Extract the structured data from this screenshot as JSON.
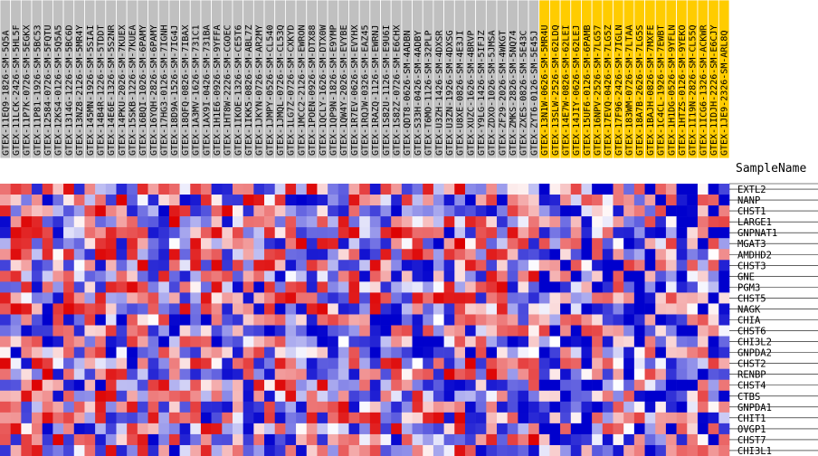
{
  "chart_data": {
    "type": "heatmap",
    "title": "",
    "xlabel": "",
    "ylabel": "SampleName",
    "colors": {
      "group_a_header": "#c0c0c0",
      "group_b_header": "#ffcc00",
      "low": "#0000cc",
      "mid": "#ffffff",
      "high": "#dd0000"
    },
    "value_range": [
      -2,
      2
    ],
    "columns": [
      {
        "name": "GTEX-11EQ9-1826-SM-5Q5A",
        "group": "a"
      },
      {
        "name": "GTEX-11LCK-2426-SM-5HL5F",
        "group": "a"
      },
      {
        "name": "GTEX-11P7K-0726-SM-5EGKX",
        "group": "a"
      },
      {
        "name": "GTEX-11P81-1926-SM-5BC53",
        "group": "a"
      },
      {
        "name": "GTEX-12584-0726-SM-5FQTU",
        "group": "a"
      },
      {
        "name": "GTEX-12KS4-0126-SM-5Q5A5",
        "group": "a"
      },
      {
        "name": "GTEX-1314G-1226-SM-5BC6D",
        "group": "a"
      },
      {
        "name": "GTEX-13NZ8-2126-SM-5MR4Y",
        "group": "a"
      },
      {
        "name": "GTEX-145MN-1926-SM-5SIAI",
        "group": "a"
      },
      {
        "name": "GTEX-14B4R-1226-SM-5TDDT",
        "group": "a"
      },
      {
        "name": "GTEX-14E6E-1326-SM-5S2NR",
        "group": "a"
      },
      {
        "name": "GTEX-14PKU-2026-SM-7KUEX",
        "group": "a"
      },
      {
        "name": "GTEX-15SKB-1226-SM-7KUEA",
        "group": "a"
      },
      {
        "name": "GTEX-16BQI-1026-SM-6PAMY",
        "group": "a"
      },
      {
        "name": "GTEX-16YQH-2826-SM-6PAMY",
        "group": "a"
      },
      {
        "name": "GTEX-17HG3-0126-SM-7IGNH",
        "group": "a"
      },
      {
        "name": "GTEX-18D9A-1526-SM-7IG4J",
        "group": "a"
      },
      {
        "name": "GTEX-18QFQ-0826-SM-7IBAX",
        "group": "a"
      },
      {
        "name": "GTEX-1A3MV-1626-SM-731C1",
        "group": "a"
      },
      {
        "name": "GTEX-1AX9I-0426-SM-731BA",
        "group": "a"
      },
      {
        "name": "GTEX-1H1E6-0926-SM-9YFFA",
        "group": "a"
      },
      {
        "name": "GTEX-1HT8W-2226-SM-CGOEC",
        "group": "a"
      },
      {
        "name": "GTEX-1IKOE-1326-SM-CE5T6",
        "group": "a"
      },
      {
        "name": "GTEX-1IKK5-0826-SM-ABL7Z",
        "group": "a"
      },
      {
        "name": "GTEX-1JKYN-0726-SM-AR2MY",
        "group": "a"
      },
      {
        "name": "GTEX-1JMPY-0526-SM-CL540",
        "group": "a"
      },
      {
        "name": "GTEX-1JMQL-0726-SM-CL53Q",
        "group": "a"
      },
      {
        "name": "GTEX-1LG7Z-0726-SM-CXKYD",
        "group": "a"
      },
      {
        "name": "GTEX-1MCC2-2126-SM-EWRON",
        "group": "a"
      },
      {
        "name": "GTEX-1POEN-0926-SM-DTX88",
        "group": "a"
      },
      {
        "name": "GTEX-1QCLY-1626-SM-DTX0W",
        "group": "a"
      },
      {
        "name": "GTEX-1QP9N-1826-SM-E9YMP",
        "group": "a"
      },
      {
        "name": "GTEX-1QW4Y-2026-SM-EVYBE",
        "group": "a"
      },
      {
        "name": "GTEX-1R7EV-0626-SM-EVYHX",
        "group": "a"
      },
      {
        "name": "GTEX-1RQJW-0326-SM-EAZ45",
        "group": "a"
      },
      {
        "name": "GTEX-1RAZQ-1126-SM-EWRNJ",
        "group": "a"
      },
      {
        "name": "GTEX-1S82U-1126-SM-E9U6I",
        "group": "a"
      },
      {
        "name": "GTEX-1S82Z-0726-SM-E6CHX",
        "group": "a"
      },
      {
        "name": "GTEX-QDT8-0626-SM-4ADBN",
        "group": "a"
      },
      {
        "name": "GTEX-S33H-0426-SM-4ADBY",
        "group": "a"
      },
      {
        "name": "GTEX-T6MO-1126-SM-32PLP",
        "group": "a"
      },
      {
        "name": "GTEX-U3ZH-1426-SM-4DXSR",
        "group": "a"
      },
      {
        "name": "GTEX-U3ZN-1926-SM-4DXSG",
        "group": "a"
      },
      {
        "name": "GTEX-U8XE-0826-SM-4E3JI",
        "group": "a"
      },
      {
        "name": "GTEX-XUZC-1626-SM-4BRVP",
        "group": "a"
      },
      {
        "name": "GTEX-Y9LG-1426-SM-5IFJZ",
        "group": "a"
      },
      {
        "name": "GTEX-ZDXO-1026-SM-5JMSA",
        "group": "a"
      },
      {
        "name": "GTEX-ZF29-2026-SM-4WKGT",
        "group": "a"
      },
      {
        "name": "GTEX-ZMKS-2826-SM-5NQ74",
        "group": "a"
      },
      {
        "name": "GTEX-ZXES-0826-SM-5E43C",
        "group": "a"
      },
      {
        "name": "GTEX-ZYT6-0126-SM-5E45J",
        "group": "a"
      },
      {
        "name": "GTEX-13N1W-0626-SM-5MR4U",
        "group": "b"
      },
      {
        "name": "GTEX-13SLW-2526-SM-62LDQ",
        "group": "b"
      },
      {
        "name": "GTEX-14E7W-0826-SM-62LEI",
        "group": "b"
      },
      {
        "name": "GTEX-14JIY-0626-SM-62LEJ",
        "group": "b"
      },
      {
        "name": "GTEX-15UF6-0126-SM-6PAMB",
        "group": "b"
      },
      {
        "name": "GTEX-16NPV-2526-SM-7LG57",
        "group": "b"
      },
      {
        "name": "GTEX-17EVQ-0426-SM-7LG5Z",
        "group": "b"
      },
      {
        "name": "GTEX-17F96-2426-SM-7IGLN",
        "group": "b"
      },
      {
        "name": "GTEX-183WM-0726-SM-7LTAA",
        "group": "b"
      },
      {
        "name": "GTEX-18A7B-2626-SM-7LG5S",
        "group": "b"
      },
      {
        "name": "GTEX-1BAJH-0826-SM-7MXFE",
        "group": "b"
      },
      {
        "name": "GTEX-1C4CL-1926-SM-7EWBT",
        "group": "b"
      },
      {
        "name": "GTEX-1H1DG-0526-SM-9YFLN",
        "group": "b"
      },
      {
        "name": "GTEX-1HTZS-0126-SM-9YEKO",
        "group": "b"
      },
      {
        "name": "GTEX-1I19N-2826-SM-CL55Q",
        "group": "b"
      },
      {
        "name": "GTEX-1ICG6-1326-SM-ACKWR",
        "group": "b"
      },
      {
        "name": "GTEX-1IDJH-2226-SM-E6CJY",
        "group": "b"
      },
      {
        "name": "GTEX-1JE9-2326-SM-ARL8Q",
        "group": "b"
      }
    ],
    "rows": [
      "EXTL2",
      "NANP",
      "CHST1",
      "LARGE1",
      "GNPNAT1",
      "MGAT3",
      "AMDHD2",
      "CHST3",
      "GNE",
      "PGM3",
      "CHST5",
      "NAGK",
      "CHIA",
      "CHST6",
      "CHI3L2",
      "GNPDA2",
      "CHST2",
      "RENBP",
      "CHST4",
      "CTBS",
      "GNPDA1",
      "CHIT1",
      "OVGP1",
      "CHST7",
      "CHI3L1"
    ]
  }
}
